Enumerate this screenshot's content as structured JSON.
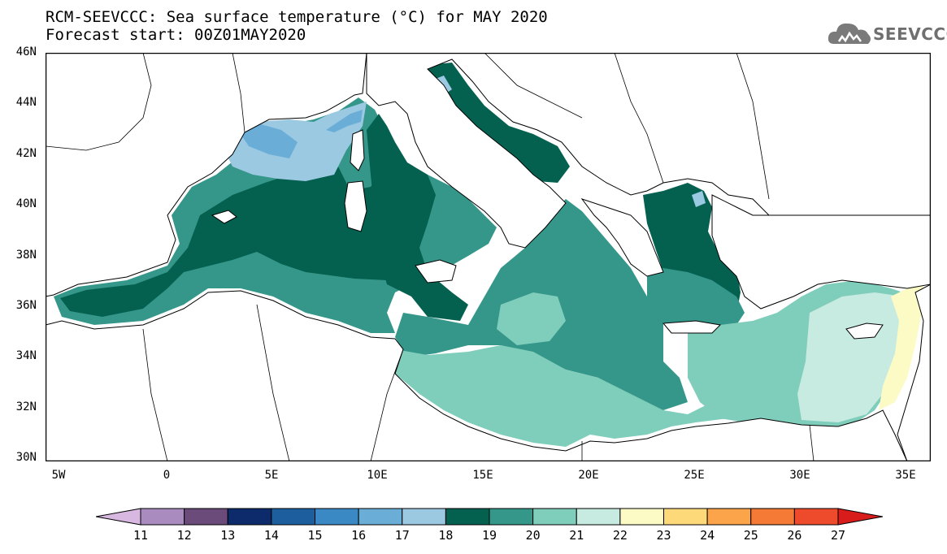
{
  "title": {
    "line1": "RCM-SEEVCCC: Sea surface temperature (°C) for MAY 2020",
    "line2": "Forecast start: 00Z01MAY2020"
  },
  "logo": {
    "text": "SEEVCCC",
    "icon": "cloud-icon"
  },
  "map": {
    "lon_range": [
      -6,
      36
    ],
    "lat_range": [
      30,
      46
    ],
    "lat_ticks": [
      "46N",
      "44N",
      "42N",
      "40N",
      "38N",
      "36N",
      "34N",
      "32N",
      "30N"
    ],
    "lon_ticks": [
      "5W",
      "0",
      "5E",
      "10E",
      "15E",
      "20E",
      "25E",
      "30E",
      "35E"
    ],
    "land_color": "#ffffff",
    "coastline_color": "#000000"
  },
  "colorbar": {
    "labels": [
      "11",
      "12",
      "13",
      "14",
      "15",
      "16",
      "17",
      "18",
      "19",
      "20",
      "21",
      "22",
      "23",
      "24",
      "25",
      "26",
      "27"
    ],
    "colors": [
      "#d8b8e0",
      "#a98bbf",
      "#6a4b7a",
      "#0d2b6b",
      "#1c5e9e",
      "#3a89c4",
      "#6aaed8",
      "#9cc9e2",
      "#04614f",
      "#35968a",
      "#7fcdbb",
      "#c7eae1",
      "#fcfbc5",
      "#fdd97a",
      "#fba44a",
      "#f57a35",
      "#ee4a2c",
      "#d81b1b"
    ]
  }
}
